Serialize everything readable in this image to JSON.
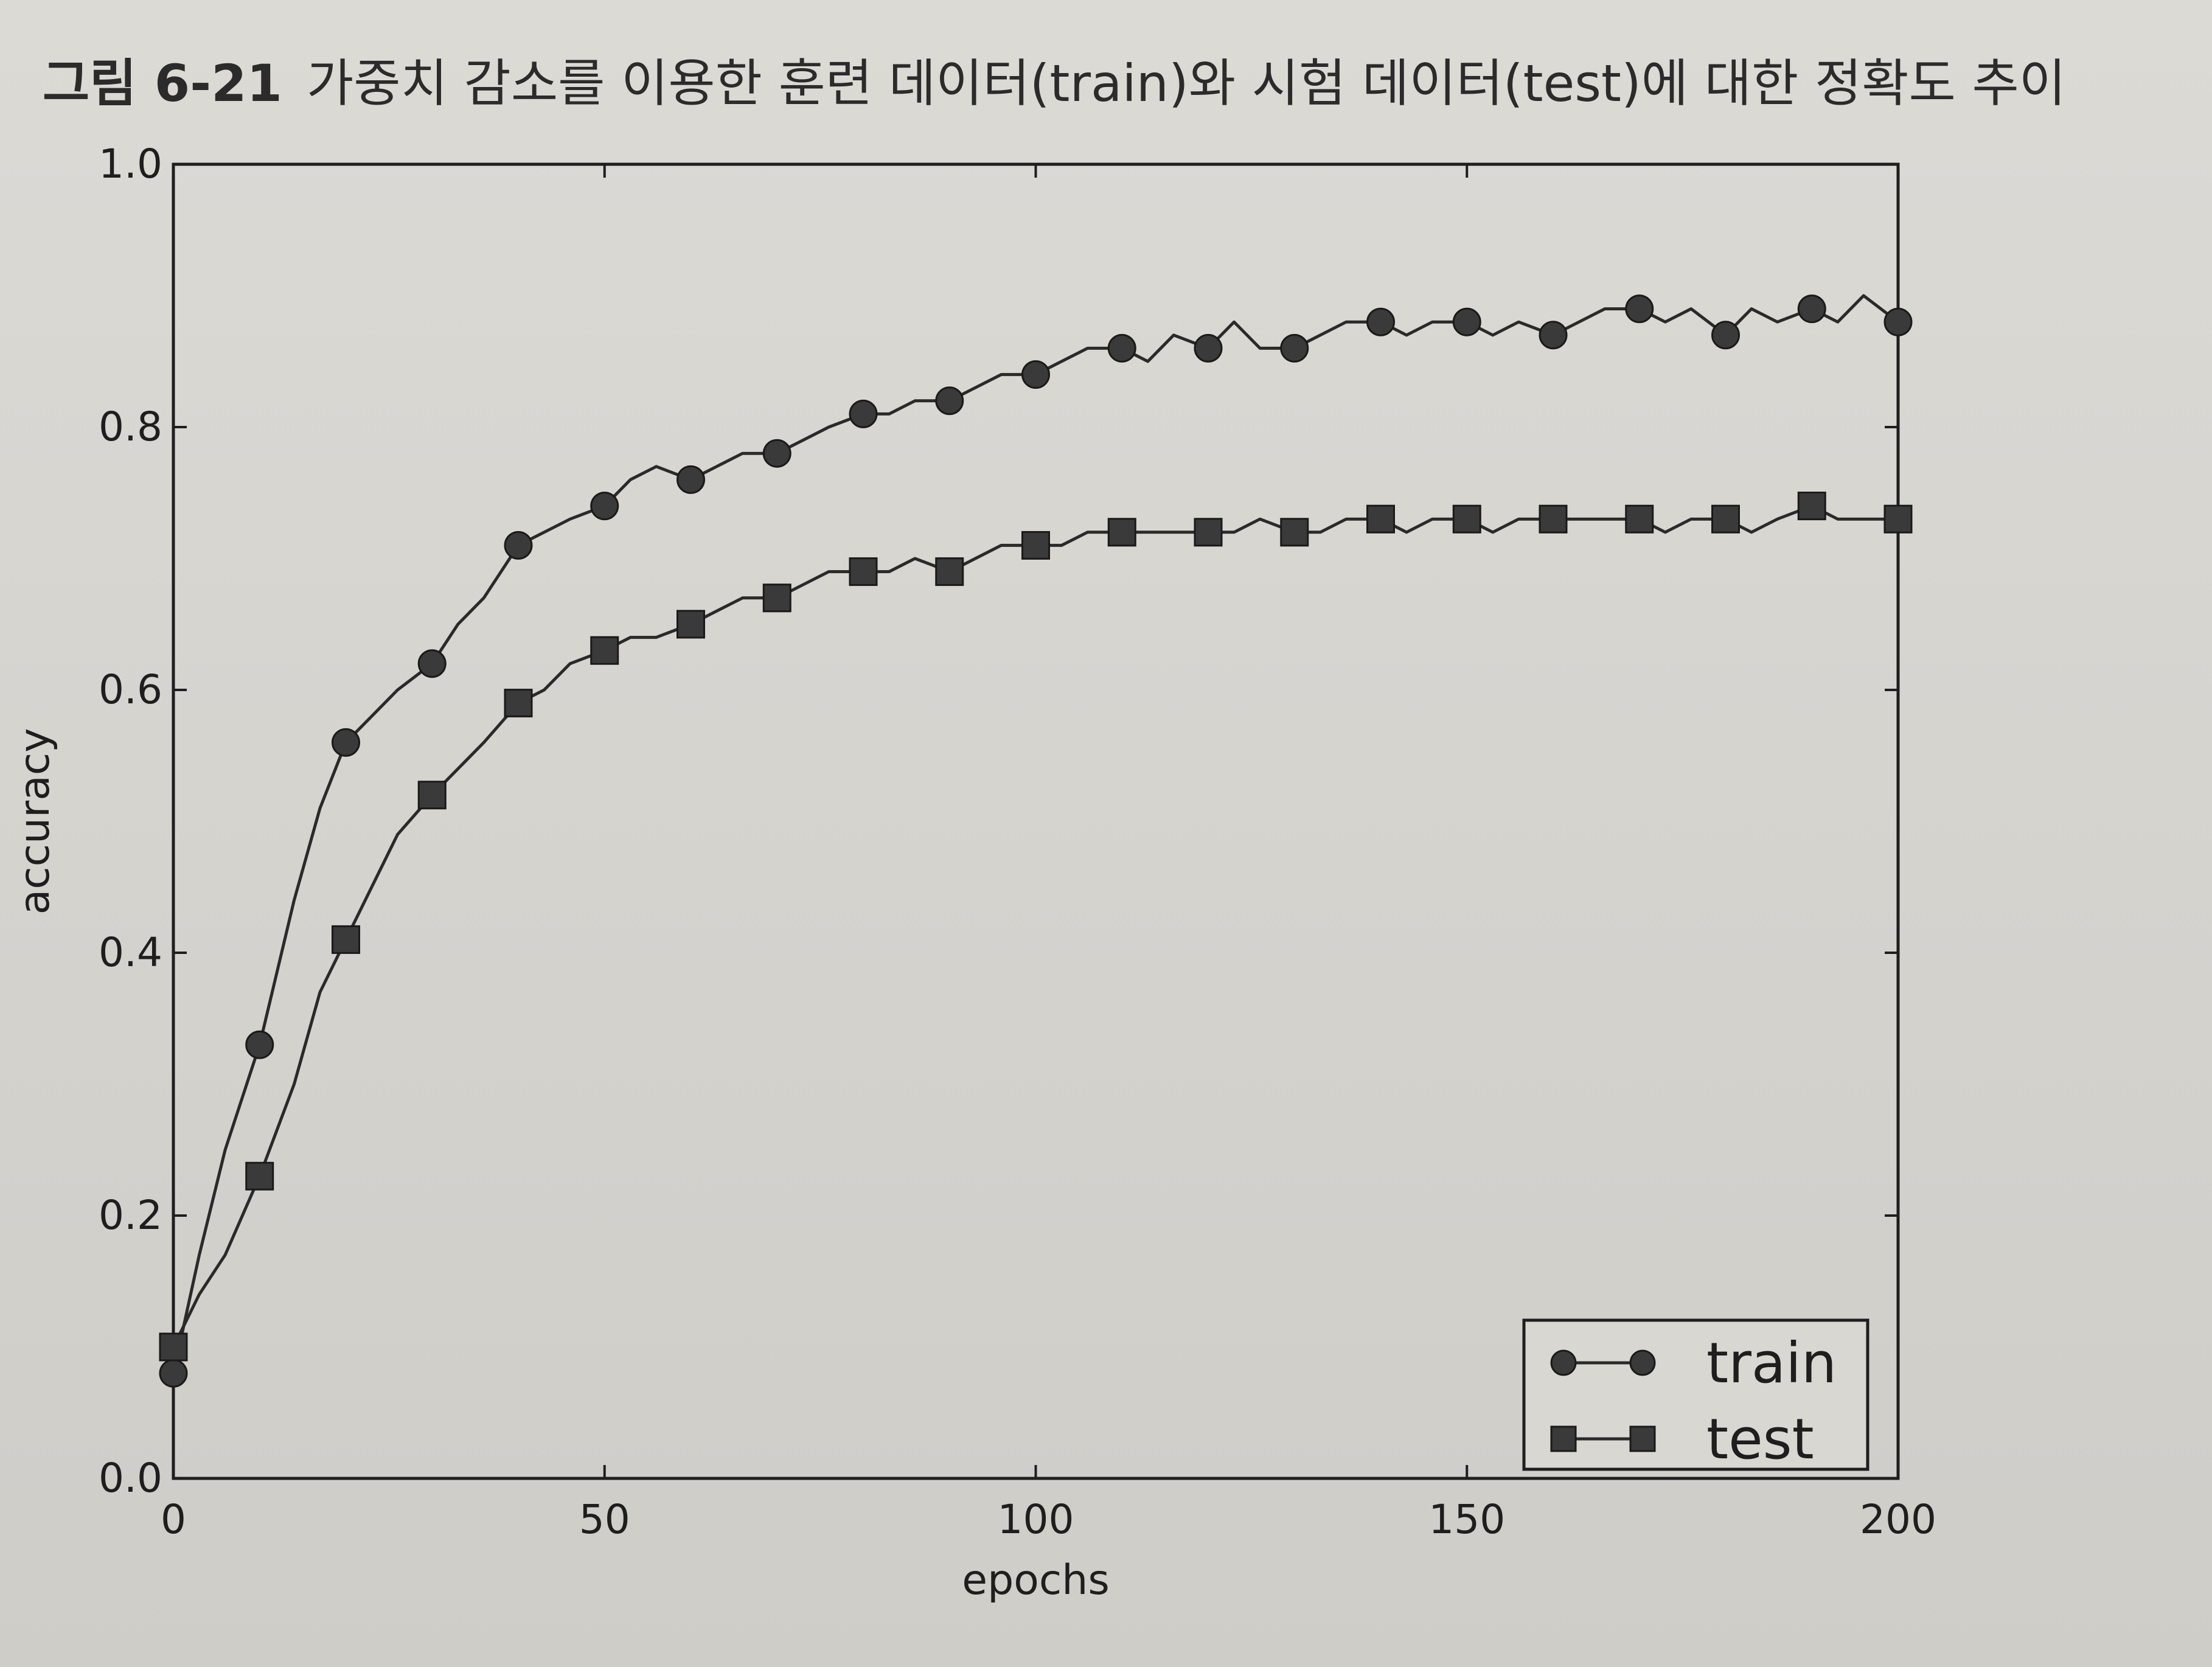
{
  "caption": {
    "label": "그림 6-21",
    "text": "가중치 감소를 이용한 훈련 데이터(train)와 시험 데이터(test)에 대한 정확도 추이"
  },
  "colors": {
    "line": "#2a2a2a",
    "marker": "#3a3a3a",
    "axes": "#1e1e1e"
  },
  "chart_data": {
    "type": "line",
    "title": "",
    "xlabel": "epochs",
    "ylabel": "accuracy",
    "xlim": [
      0,
      200
    ],
    "ylim": [
      0.0,
      1.0
    ],
    "xticks": [
      0,
      50,
      100,
      150,
      200
    ],
    "yticks": [
      0.0,
      0.2,
      0.4,
      0.6,
      0.8,
      1.0
    ],
    "xtick_labels": [
      "0",
      "50",
      "100",
      "150",
      "200"
    ],
    "ytick_labels": [
      "0.0",
      "0.2",
      "0.4",
      "0.6",
      "0.8",
      "1.0"
    ],
    "grid": false,
    "legend_position": "bottom-right",
    "marker_every": 10,
    "series": [
      {
        "name": "train",
        "marker": "circle",
        "x": [
          0,
          3,
          6,
          10,
          14,
          17,
          20,
          23,
          26,
          30,
          33,
          36,
          40,
          43,
          46,
          50,
          53,
          56,
          60,
          63,
          66,
          70,
          73,
          76,
          80,
          83,
          86,
          90,
          93,
          96,
          100,
          103,
          106,
          110,
          113,
          116,
          120,
          123,
          126,
          130,
          133,
          136,
          140,
          143,
          146,
          150,
          153,
          156,
          160,
          163,
          166,
          170,
          173,
          176,
          180,
          183,
          186,
          190,
          193,
          196,
          200
        ],
        "values": [
          0.08,
          0.17,
          0.25,
          0.33,
          0.44,
          0.51,
          0.56,
          0.58,
          0.6,
          0.62,
          0.65,
          0.67,
          0.71,
          0.72,
          0.73,
          0.74,
          0.76,
          0.77,
          0.76,
          0.77,
          0.78,
          0.78,
          0.79,
          0.8,
          0.81,
          0.81,
          0.82,
          0.82,
          0.83,
          0.84,
          0.84,
          0.85,
          0.86,
          0.86,
          0.85,
          0.87,
          0.86,
          0.88,
          0.86,
          0.86,
          0.87,
          0.88,
          0.88,
          0.87,
          0.88,
          0.88,
          0.87,
          0.88,
          0.87,
          0.88,
          0.89,
          0.89,
          0.88,
          0.89,
          0.87,
          0.89,
          0.88,
          0.89,
          0.88,
          0.9,
          0.88
        ]
      },
      {
        "name": "test",
        "marker": "square",
        "x": [
          0,
          3,
          6,
          10,
          14,
          17,
          20,
          23,
          26,
          30,
          33,
          36,
          40,
          43,
          46,
          50,
          53,
          56,
          60,
          63,
          66,
          70,
          73,
          76,
          80,
          83,
          86,
          90,
          93,
          96,
          100,
          103,
          106,
          110,
          113,
          116,
          120,
          123,
          126,
          130,
          133,
          136,
          140,
          143,
          146,
          150,
          153,
          156,
          160,
          163,
          166,
          170,
          173,
          176,
          180,
          183,
          186,
          190,
          193,
          196,
          200
        ],
        "values": [
          0.1,
          0.14,
          0.17,
          0.23,
          0.3,
          0.37,
          0.41,
          0.45,
          0.49,
          0.52,
          0.54,
          0.56,
          0.59,
          0.6,
          0.62,
          0.63,
          0.64,
          0.64,
          0.65,
          0.66,
          0.67,
          0.67,
          0.68,
          0.69,
          0.69,
          0.69,
          0.7,
          0.69,
          0.7,
          0.71,
          0.71,
          0.71,
          0.72,
          0.72,
          0.72,
          0.72,
          0.72,
          0.72,
          0.73,
          0.72,
          0.72,
          0.73,
          0.73,
          0.72,
          0.73,
          0.73,
          0.72,
          0.73,
          0.73,
          0.73,
          0.73,
          0.73,
          0.72,
          0.73,
          0.73,
          0.72,
          0.73,
          0.74,
          0.73,
          0.73,
          0.73
        ]
      }
    ]
  }
}
